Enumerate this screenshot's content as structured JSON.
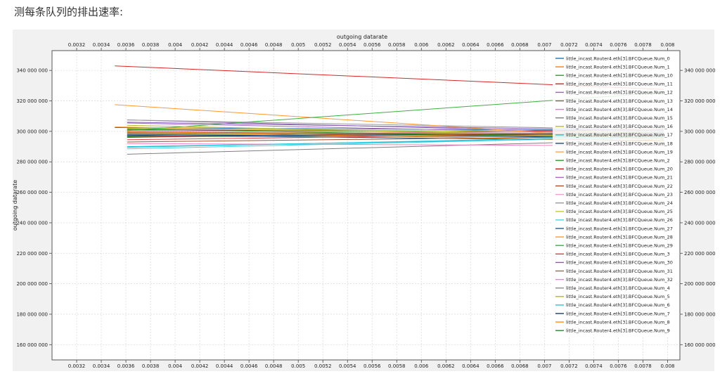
{
  "heading": "测每条队列的排出速率:",
  "chart_data": {
    "type": "line",
    "title": "",
    "xlabel": "outgoing datarate",
    "ylabel": "outgoing datarate",
    "xlim": [
      0.003,
      0.0081
    ],
    "ylim": [
      150000000,
      353000000
    ],
    "x_ticks": [
      "0.0032",
      "0.0034",
      "0.0036",
      "0.0038",
      "0.004",
      "0.0042",
      "0.0044",
      "0.0046",
      "0.0048",
      "0.005",
      "0.0052",
      "0.0054",
      "0.0056",
      "0.0058",
      "0.006",
      "0.0062",
      "0.0064",
      "0.0066",
      "0.0068",
      "0.007",
      "0.0072",
      "0.0074",
      "0.0076",
      "0.0078",
      "0.008"
    ],
    "x_tick_values": [
      0.0032,
      0.0034,
      0.0036,
      0.0038,
      0.004,
      0.0042,
      0.0044,
      0.0046,
      0.0048,
      0.005,
      0.0052,
      0.0054,
      0.0056,
      0.0058,
      0.006,
      0.0062,
      0.0064,
      0.0066,
      0.0068,
      0.007,
      0.0072,
      0.0074,
      0.0076,
      0.0078,
      0.008
    ],
    "y_ticks": [
      "160 000 000",
      "180 000 000",
      "200 000 000",
      "220 000 000",
      "240 000 000",
      "260 000 000",
      "280 000 000",
      "300 000 000",
      "320 000 000",
      "340 000 000"
    ],
    "y_tick_values": [
      160000000,
      180000000,
      200000000,
      220000000,
      240000000,
      260000000,
      280000000,
      300000000,
      320000000,
      340000000
    ],
    "grid": true,
    "legend_position": "top-right",
    "series": [
      {
        "name": "little_incast.Router4.eth[3].BFCQueue.Num_0",
        "color": "#1f77b4",
        "x": [
          0.00351,
          0.00797
        ],
        "y": [
          302500000,
          300500000
        ]
      },
      {
        "name": "little_incast.Router4.eth[3].BFCQueue.Num_1",
        "color": "#ff7f0e",
        "x": [
          0.00361,
          0.00797
        ],
        "y": [
          299500000,
          298000000
        ]
      },
      {
        "name": "little_incast.Router4.eth[3].BFCQueue.Num_10",
        "color": "#2ca02c",
        "x": [
          0.00361,
          0.00797
        ],
        "y": [
          296500000,
          297500000
        ]
      },
      {
        "name": "little_incast.Router4.eth[3].BFCQueue.Num_11",
        "color": "#d62728",
        "x": [
          0.00351,
          0.00797
        ],
        "y": [
          343000000,
          327500000
        ]
      },
      {
        "name": "little_incast.Router4.eth[3].BFCQueue.Num_12",
        "color": "#9467bd",
        "x": [
          0.00361,
          0.00797
        ],
        "y": [
          307500000,
          298500000
        ]
      },
      {
        "name": "little_incast.Router4.eth[3].BFCQueue.Num_13",
        "color": "#8c564b",
        "x": [
          0.00361,
          0.00797
        ],
        "y": [
          300000000,
          296000000
        ]
      },
      {
        "name": "little_incast.Router4.eth[3].BFCQueue.Num_14",
        "color": "#e377c2",
        "x": [
          0.00361,
          0.00797
        ],
        "y": [
          301500000,
          299500000
        ]
      },
      {
        "name": "little_incast.Router4.eth[3].BFCQueue.Num_15",
        "color": "#7f7f7f",
        "x": [
          0.00361,
          0.00797
        ],
        "y": [
          285000000,
          294500000
        ]
      },
      {
        "name": "little_incast.Router4.eth[3].BFCQueue.Num_16",
        "color": "#bcbd22",
        "x": [
          0.00361,
          0.00797
        ],
        "y": [
          298500000,
          297000000
        ]
      },
      {
        "name": "little_incast.Router4.eth[3].BFCQueue.Num_17",
        "color": "#17becf",
        "x": [
          0.00361,
          0.00797
        ],
        "y": [
          290000000,
          296000000
        ]
      },
      {
        "name": "little_incast.Router4.eth[3].BFCQueue.Num_18",
        "color": "#1f4e79",
        "x": [
          0.00361,
          0.00797
        ],
        "y": [
          297500000,
          294000000
        ]
      },
      {
        "name": "little_incast.Router4.eth[3].BFCQueue.Num_19",
        "color": "#ffa64d",
        "x": [
          0.00351,
          0.00797
        ],
        "y": [
          303000000,
          295500000
        ]
      },
      {
        "name": "little_incast.Router4.eth[3].BFCQueue.Num_2",
        "color": "#339933",
        "x": [
          0.00361,
          0.00797
        ],
        "y": [
          301000000,
          299500000
        ]
      },
      {
        "name": "little_incast.Router4.eth[3].BFCQueue.Num_20",
        "color": "#cc2222",
        "x": [
          0.00361,
          0.00797
        ],
        "y": [
          296000000,
          301500000
        ]
      },
      {
        "name": "little_incast.Router4.eth[3].BFCQueue.Num_21",
        "color": "#a56cc1",
        "x": [
          0.00361,
          0.00797
        ],
        "y": [
          305500000,
          298000000
        ]
      },
      {
        "name": "little_incast.Router4.eth[3].BFCQueue.Num_22",
        "color": "#a0522d",
        "x": [
          0.00361,
          0.00797
        ],
        "y": [
          293000000,
          297000000
        ]
      },
      {
        "name": "little_incast.Router4.eth[3].BFCQueue.Num_23",
        "color": "#f0a0d0",
        "x": [
          0.00361,
          0.00797
        ],
        "y": [
          300500000,
          298500000
        ]
      },
      {
        "name": "little_incast.Router4.eth[3].BFCQueue.Num_24",
        "color": "#999999",
        "x": [
          0.00361,
          0.00797
        ],
        "y": [
          307500000,
          301000000
        ]
      },
      {
        "name": "little_incast.Router4.eth[3].BFCQueue.Num_25",
        "color": "#c9c93a",
        "x": [
          0.00361,
          0.00797
        ],
        "y": [
          302000000,
          299000000
        ]
      },
      {
        "name": "little_incast.Router4.eth[3].BFCQueue.Num_26",
        "color": "#4dd0e1",
        "x": [
          0.00361,
          0.00797
        ],
        "y": [
          288500000,
          296500000
        ]
      },
      {
        "name": "little_incast.Router4.eth[3].BFCQueue.Num_27",
        "color": "#2a5d8f",
        "x": [
          0.00361,
          0.00797
        ],
        "y": [
          298000000,
          296000000
        ]
      },
      {
        "name": "little_incast.Router4.eth[3].BFCQueue.Num_28",
        "color": "#ff9933",
        "x": [
          0.00351,
          0.00797
        ],
        "y": [
          317500000,
          294000000
        ]
      },
      {
        "name": "little_incast.Router4.eth[3].BFCQueue.Num_29",
        "color": "#3cb043",
        "x": [
          0.00361,
          0.00797
        ],
        "y": [
          300500000,
          325500000
        ]
      },
      {
        "name": "little_incast.Router4.eth[3].BFCQueue.Num_3",
        "color": "#e04040",
        "x": [
          0.00361,
          0.00797
        ],
        "y": [
          294500000,
          299000000
        ]
      },
      {
        "name": "little_incast.Router4.eth[3].BFCQueue.Num_30",
        "color": "#8a5cb8",
        "x": [
          0.00361,
          0.00797
        ],
        "y": [
          306000000,
          300500000
        ]
      },
      {
        "name": "little_incast.Router4.eth[3].BFCQueue.Num_31",
        "color": "#8b6b5a",
        "x": [
          0.00361,
          0.00797
        ],
        "y": [
          299000000,
          297500000
        ]
      },
      {
        "name": "little_incast.Router4.eth[3].BFCQueue.Num_32",
        "color": "#ee82c8",
        "x": [
          0.00361,
          0.00797
        ],
        "y": [
          292000000,
          290500000
        ]
      },
      {
        "name": "little_incast.Router4.eth[3].BFCQueue.Num_4",
        "color": "#8c8c8c",
        "x": [
          0.00361,
          0.00797
        ],
        "y": [
          298500000,
          299000000
        ]
      },
      {
        "name": "little_incast.Router4.eth[3].BFCQueue.Num_5",
        "color": "#b5b52e",
        "x": [
          0.00361,
          0.00797
        ],
        "y": [
          304000000,
          296000000
        ]
      },
      {
        "name": "little_incast.Router4.eth[3].BFCQueue.Num_6",
        "color": "#26c6da",
        "x": [
          0.00361,
          0.00797
        ],
        "y": [
          289500000,
          297000000
        ]
      },
      {
        "name": "little_incast.Router4.eth[3].BFCQueue.Num_7",
        "color": "#1a3d6b",
        "x": [
          0.00361,
          0.00797
        ],
        "y": [
          297000000,
          298500000
        ]
      },
      {
        "name": "little_incast.Router4.eth[3].BFCQueue.Num_8",
        "color": "#ff8c1a",
        "x": [
          0.00361,
          0.00797
        ],
        "y": [
          300000000,
          293500000
        ]
      },
      {
        "name": "little_incast.Router4.eth[3].BFCQueue.Num_9",
        "color": "#2e8b2e",
        "x": [
          0.00361,
          0.00797
        ],
        "y": [
          301500000,
          295500000
        ]
      }
    ]
  }
}
